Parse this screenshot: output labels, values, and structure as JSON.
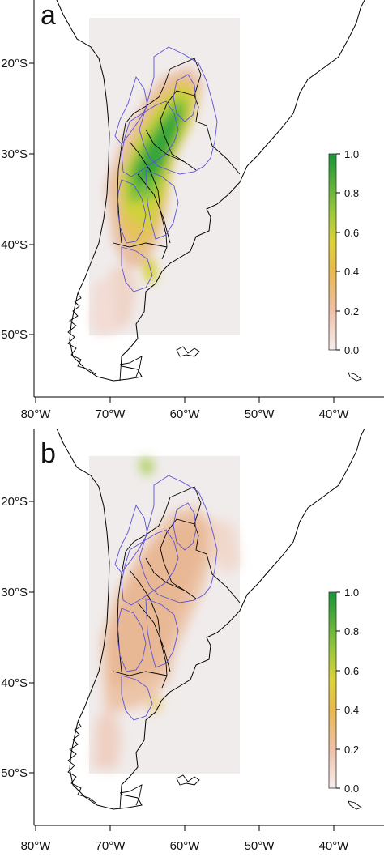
{
  "panels": [
    {
      "letter": "a",
      "lat_ticks": [
        "20°S",
        "30°S",
        "40°S",
        "50°S"
      ],
      "lon_ticks": [
        "80°W",
        "70°W",
        "60°W",
        "50°W",
        "40°W"
      ],
      "colorbar_ticks": [
        "1.0",
        "0.8",
        "0.6",
        "0.4",
        "0.2",
        "0.0"
      ]
    },
    {
      "letter": "b",
      "lat_ticks": [
        "20°S",
        "30°S",
        "40°S",
        "50°S"
      ],
      "lon_ticks": [
        "80°W",
        "70°W",
        "60°W",
        "50°W",
        "40°W"
      ],
      "colorbar_ticks": [
        "1.0",
        "0.8",
        "0.6",
        "0.4",
        "0.2",
        "0.0"
      ]
    }
  ],
  "colors": {
    "scale_low": "#f6ecea",
    "scale_mid": "#e7c23a",
    "scale_high": "#1e9a3a",
    "region_outline": "#5a52d6",
    "coastline": "#000000"
  }
}
